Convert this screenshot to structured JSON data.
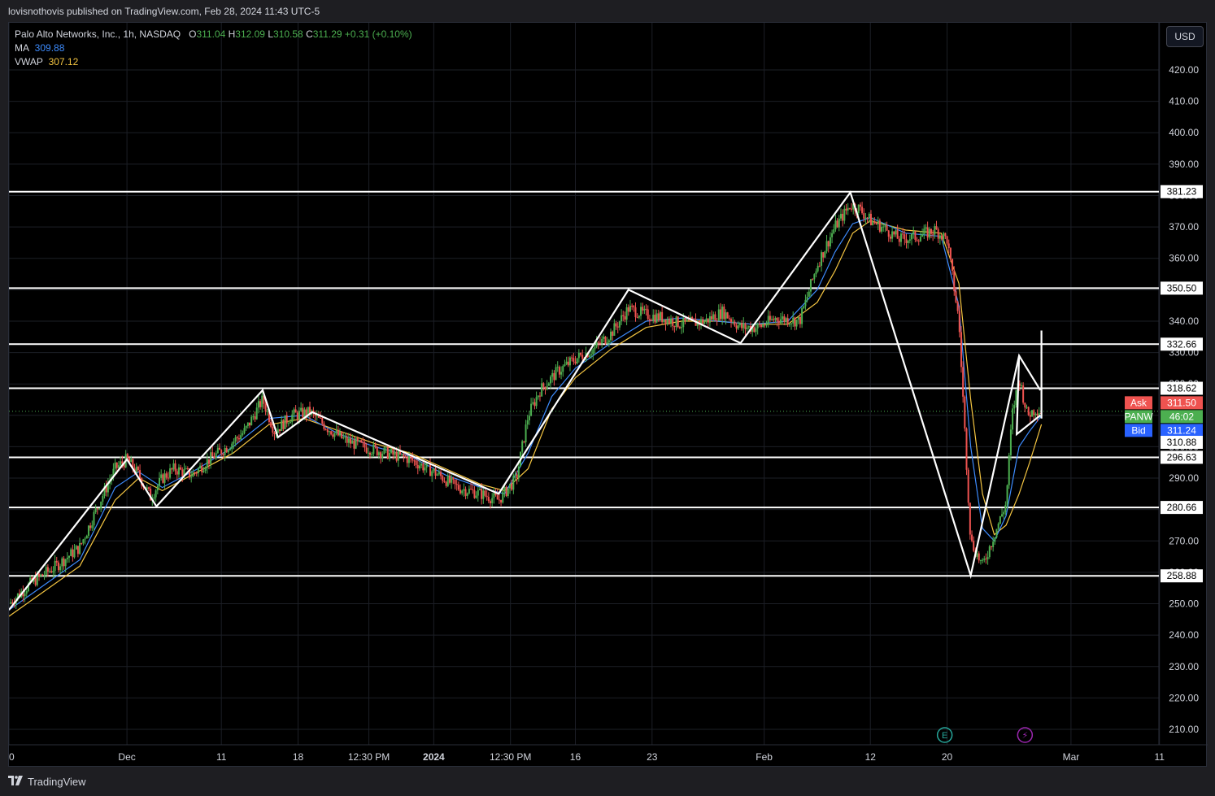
{
  "header": {
    "publisher_line": "lovisnothovis published on TradingView.com, Feb 28, 2024 11:43 UTC-5"
  },
  "legend": {
    "symbol": "Palo Alto Networks, Inc., 1h, NASDAQ",
    "o_label": "O",
    "o_value": "311.04",
    "h_label": "H",
    "h_value": "312.09",
    "l_label": "L",
    "l_value": "310.58",
    "c_label": "C",
    "c_value": "311.29",
    "change": "+0.31 (+0.10%)",
    "ma_label": "MA",
    "ma_value": "309.88",
    "vwap_label": "VWAP",
    "vwap_value": "307.12"
  },
  "currency_button": "USD",
  "footer": {
    "brand": "TradingView"
  },
  "colors": {
    "background": "#000000",
    "up": "#4caf50",
    "down": "#ef5350",
    "ma": "#3d8bfd",
    "vwap": "#f4c542",
    "drawing": "#ffffff",
    "ask": "#ef5350",
    "bid": "#2962ff",
    "last": "#4caf50"
  },
  "chart_data": {
    "type": "line",
    "symbol": "PANW",
    "interval": "1h",
    "ylim": [
      205,
      430
    ],
    "y_ticks": [
      210,
      220,
      230,
      240,
      250,
      260,
      270,
      280,
      290,
      300,
      310,
      320,
      330,
      340,
      350,
      360,
      370,
      380,
      390,
      400,
      410,
      420
    ],
    "x_ticks": [
      {
        "label": "20",
        "t": 0
      },
      {
        "label": "Dec",
        "t": 10
      },
      {
        "label": "11",
        "t": 18
      },
      {
        "label": "18",
        "t": 24.5
      },
      {
        "label": "12:30 PM",
        "t": 30.5
      },
      {
        "label": "2024",
        "t": 36,
        "bold": true
      },
      {
        "label": "12:30 PM",
        "t": 42.5
      },
      {
        "label": "16",
        "t": 48
      },
      {
        "label": "23",
        "t": 54.5
      },
      {
        "label": "Feb",
        "t": 64
      },
      {
        "label": "12",
        "t": 73
      },
      {
        "label": "20",
        "t": 79.5
      },
      {
        "label": "Mar",
        "t": 90
      },
      {
        "label": "11",
        "t": 97.5
      }
    ],
    "t_range": [
      0,
      98
    ],
    "grid": true,
    "horizontal_levels": [
      381.23,
      350.5,
      332.66,
      318.62,
      296.63,
      280.66,
      258.88
    ],
    "pattern_lines": [
      [
        [
          0,
          248
        ],
        [
          10,
          296
        ],
        [
          12.5,
          281
        ],
        [
          21.5,
          318
        ],
        [
          22.8,
          303
        ],
        [
          25.7,
          311
        ],
        [
          41.5,
          285
        ],
        [
          52.5,
          350
        ],
        [
          62,
          333
        ],
        [
          71.3,
          381
        ],
        [
          81.5,
          259
        ],
        [
          85.6,
          329
        ],
        [
          87.4,
          318
        ]
      ],
      [
        [
          85.6,
          329
        ],
        [
          85.4,
          304
        ],
        [
          87.4,
          310
        ]
      ],
      [
        [
          87.5,
          309
        ],
        [
          87.5,
          337
        ]
      ]
    ],
    "price_series": [
      [
        0,
        250
      ],
      [
        2,
        257
      ],
      [
        4,
        262
      ],
      [
        6,
        268
      ],
      [
        8,
        285
      ],
      [
        9,
        293
      ],
      [
        10,
        296
      ],
      [
        11,
        291
      ],
      [
        12,
        284
      ],
      [
        13,
        290
      ],
      [
        14,
        293
      ],
      [
        15.5,
        291
      ],
      [
        17,
        296
      ],
      [
        18.5,
        300
      ],
      [
        20,
        305
      ],
      [
        21.5,
        315
      ],
      [
        22.5,
        305
      ],
      [
        24,
        310
      ],
      [
        25.5,
        311
      ],
      [
        27,
        306
      ],
      [
        28.5,
        302
      ],
      [
        30,
        300
      ],
      [
        32,
        298
      ],
      [
        34,
        296
      ],
      [
        36,
        292
      ],
      [
        38,
        287
      ],
      [
        40,
        285
      ],
      [
        41.5,
        283
      ],
      [
        43,
        290
      ],
      [
        44,
        310
      ],
      [
        45,
        318
      ],
      [
        46.5,
        324
      ],
      [
        48,
        328
      ],
      [
        49.5,
        331
      ],
      [
        51,
        336
      ],
      [
        52.5,
        344
      ],
      [
        54,
        342
      ],
      [
        55.5,
        341
      ],
      [
        57,
        339
      ],
      [
        59,
        340
      ],
      [
        60.5,
        343
      ],
      [
        62,
        338
      ],
      [
        63.5,
        338
      ],
      [
        65,
        341
      ],
      [
        67,
        340
      ],
      [
        68.5,
        358
      ],
      [
        70,
        370
      ],
      [
        71.3,
        377
      ],
      [
        72,
        376
      ],
      [
        73,
        372
      ],
      [
        74,
        370
      ],
      [
        75.5,
        366
      ],
      [
        77,
        367
      ],
      [
        78.5,
        369
      ],
      [
        79.5,
        366
      ],
      [
        80.5,
        340
      ],
      [
        81.5,
        270
      ],
      [
        82.5,
        262
      ],
      [
        83.5,
        272
      ],
      [
        84.5,
        282
      ],
      [
        85,
        310
      ],
      [
        85.6,
        322
      ],
      [
        86.3,
        310
      ],
      [
        87,
        312
      ],
      [
        87.5,
        311.29
      ]
    ],
    "ma_series": [
      [
        0,
        248
      ],
      [
        3,
        256
      ],
      [
        6,
        264
      ],
      [
        9,
        287
      ],
      [
        11,
        292
      ],
      [
        13,
        287
      ],
      [
        16,
        293
      ],
      [
        19,
        300
      ],
      [
        22,
        309
      ],
      [
        25,
        310
      ],
      [
        28,
        304
      ],
      [
        31,
        300
      ],
      [
        34,
        297
      ],
      [
        37,
        291
      ],
      [
        40,
        287
      ],
      [
        42,
        285
      ],
      [
        44,
        298
      ],
      [
        46,
        316
      ],
      [
        48,
        325
      ],
      [
        51,
        333
      ],
      [
        54,
        340
      ],
      [
        57,
        341
      ],
      [
        60,
        340
      ],
      [
        63,
        339
      ],
      [
        66,
        340
      ],
      [
        68.5,
        350
      ],
      [
        70,
        362
      ],
      [
        71.5,
        371
      ],
      [
        73,
        373
      ],
      [
        76,
        368
      ],
      [
        79,
        367
      ],
      [
        80.5,
        345
      ],
      [
        81.5,
        300
      ],
      [
        82.5,
        274
      ],
      [
        83.5,
        270
      ],
      [
        84.5,
        278
      ],
      [
        85.6,
        300
      ],
      [
        86.5,
        305
      ],
      [
        87.5,
        309.88
      ]
    ],
    "vwap_series": [
      [
        0,
        246
      ],
      [
        3,
        254
      ],
      [
        6,
        262
      ],
      [
        9,
        283
      ],
      [
        11,
        290
      ],
      [
        13,
        286
      ],
      [
        16,
        292
      ],
      [
        19,
        298
      ],
      [
        22,
        307
      ],
      [
        25,
        309
      ],
      [
        28,
        305
      ],
      [
        31,
        301
      ],
      [
        34,
        298
      ],
      [
        37,
        293
      ],
      [
        40,
        288
      ],
      [
        42,
        286
      ],
      [
        44,
        293
      ],
      [
        46,
        312
      ],
      [
        48,
        322
      ],
      [
        51,
        331
      ],
      [
        54,
        338
      ],
      [
        57,
        340
      ],
      [
        60,
        340
      ],
      [
        63,
        339
      ],
      [
        66,
        339
      ],
      [
        68.5,
        346
      ],
      [
        70,
        356
      ],
      [
        71.5,
        368
      ],
      [
        73,
        372
      ],
      [
        76,
        369
      ],
      [
        79,
        368
      ],
      [
        80.5,
        352
      ],
      [
        81.5,
        315
      ],
      [
        82.5,
        285
      ],
      [
        83.5,
        272
      ],
      [
        84.5,
        275
      ],
      [
        85.6,
        285
      ],
      [
        86.5,
        295
      ],
      [
        87.5,
        307.12
      ]
    ],
    "price_labels": [
      {
        "name": "level-381",
        "text": "381.23",
        "y": 381.23,
        "bg": "#ffffff",
        "fg": "#000000"
      },
      {
        "name": "level-350",
        "text": "350.50",
        "y": 350.5,
        "bg": "#ffffff",
        "fg": "#000000"
      },
      {
        "name": "level-332",
        "text": "332.66",
        "y": 332.66,
        "bg": "#ffffff",
        "fg": "#000000"
      },
      {
        "name": "level-318",
        "text": "318.62",
        "y": 318.62,
        "bg": "#ffffff",
        "fg": "#000000"
      },
      {
        "name": "ask",
        "text": "311.50",
        "y": 314.0,
        "bg": "#ef5350",
        "fg": "#ffffff",
        "tag": "Ask"
      },
      {
        "name": "last",
        "text": "46:02",
        "y": 309.6,
        "bg": "#4caf50",
        "fg": "#ffffff",
        "tag": "PANW"
      },
      {
        "name": "bid",
        "text": "311.24",
        "y": 305.2,
        "bg": "#2962ff",
        "fg": "#ffffff",
        "tag": "Bid"
      },
      {
        "name": "level-310",
        "text": "310.88",
        "y": 301.4,
        "bg": "#ffffff",
        "fg": "#000000"
      },
      {
        "name": "level-296",
        "text": "296.63",
        "y": 296.63,
        "bg": "#ffffff",
        "fg": "#000000"
      },
      {
        "name": "level-280",
        "text": "280.66",
        "y": 280.66,
        "bg": "#ffffff",
        "fg": "#000000"
      },
      {
        "name": "level-258",
        "text": "258.88",
        "y": 258.88,
        "bg": "#ffffff",
        "fg": "#000000"
      }
    ],
    "markers": [
      {
        "name": "earnings-icon",
        "t": 79.3,
        "letter": "E",
        "color": "#26a69a"
      },
      {
        "name": "dividend-flash-icon",
        "t": 86.1,
        "letter": "⚡",
        "color": "#9c27b0"
      }
    ]
  }
}
